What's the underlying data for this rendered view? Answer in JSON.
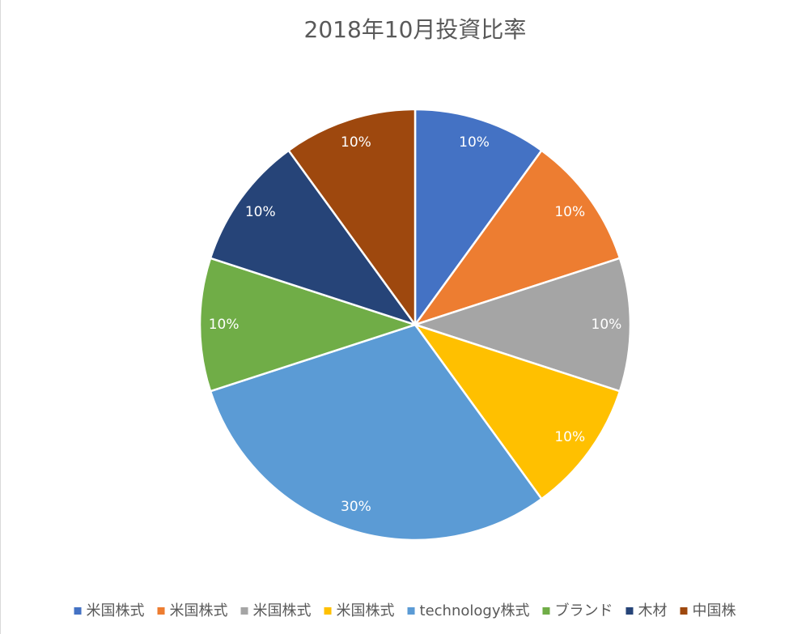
{
  "chart_data": {
    "type": "pie",
    "title": "2018年10月投資比率",
    "categories": [
      "米国株式",
      "米国株式",
      "米国株式",
      "米国株式",
      "technology株式",
      "ブランド",
      "木材",
      "中国株"
    ],
    "values": [
      10,
      10,
      10,
      10,
      30,
      10,
      10,
      10
    ],
    "value_labels": [
      "10%",
      "10%",
      "10%",
      "10%",
      "30%",
      "10%",
      "10%",
      "10%"
    ],
    "colors": [
      "#4472c4",
      "#ed7d31",
      "#a5a5a5",
      "#ffc000",
      "#5b9bd5",
      "#70ad47",
      "#264478",
      "#9e480e"
    ],
    "legend": "bottom"
  }
}
